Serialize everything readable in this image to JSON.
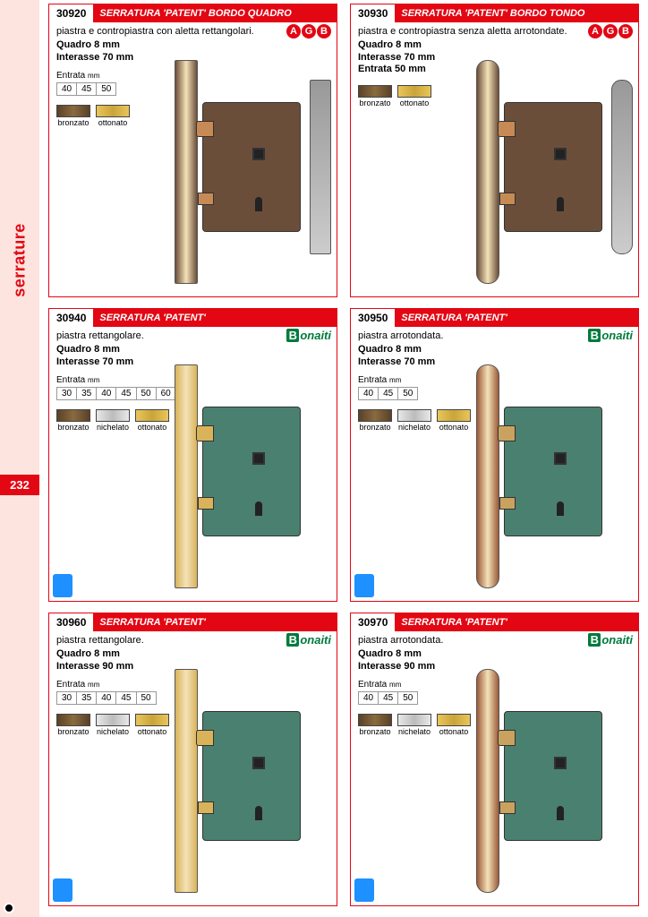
{
  "sidebar": {
    "label": "serrature",
    "bg": "#fde4de",
    "color": "#e30613"
  },
  "pageNumber": "232",
  "accent": "#e30613",
  "finishes": {
    "bronzato": {
      "label": "bronzato",
      "color1": "#5a4128",
      "color2": "#8a6a3f"
    },
    "ottonato": {
      "label": "ottonato",
      "color1": "#e9c65a",
      "color2": "#c9a43a"
    },
    "nichelato": {
      "label": "nichelato",
      "color1": "#e8e8e8",
      "color2": "#bcbcbc"
    }
  },
  "entrataLabel": "Entrata",
  "entrataUnit": "mm",
  "brands": {
    "agb": [
      "A",
      "G",
      "B"
    ],
    "bonaiti": "onaiti"
  },
  "lockStyles": {
    "agb": {
      "plate": "#6b4e3a",
      "body": "#6b4e3a",
      "latch": "#c88a55"
    },
    "brass": {
      "plate": "#d9b35a",
      "body": "#4a8070",
      "latch": "#d9b35a"
    },
    "copper": {
      "plate": "#9c5a3a",
      "body": "#4a8070",
      "latch": "#caa260"
    }
  },
  "cells": [
    {
      "code": "30920",
      "title": "SERRATURA 'PATENT' BORDO QUADRO",
      "desc": "piastra e contropiastra con aletta rettangolari.",
      "specs": [
        "Quadro 8 mm",
        "Interasse 70 mm"
      ],
      "entrata": [
        "40",
        "45",
        "50"
      ],
      "finishKeys": [
        "bronzato",
        "ottonato"
      ],
      "brand": "agb",
      "lockStyle": "agb",
      "rounded": false,
      "strike": true,
      "badge": false
    },
    {
      "code": "30930",
      "title": "SERRATURA 'PATENT' BORDO TONDO",
      "desc": "piastra e contropiastra senza aletta arrotondate.",
      "specs": [
        "Quadro 8 mm",
        "Interasse 70 mm",
        "Entrata 50 mm"
      ],
      "entrata": null,
      "finishKeys": [
        "bronzato",
        "ottonato"
      ],
      "brand": "agb",
      "lockStyle": "agb",
      "rounded": true,
      "strike": true,
      "badge": false
    },
    {
      "code": "30940",
      "title": "SERRATURA 'PATENT'",
      "desc": "piastra rettangolare.",
      "specs": [
        "Quadro 8 mm",
        "Interasse 70 mm"
      ],
      "entrata": [
        "30",
        "35",
        "40",
        "45",
        "50",
        "60"
      ],
      "finishKeys": [
        "bronzato",
        "nichelato",
        "ottonato"
      ],
      "brand": "bonaiti",
      "lockStyle": "brass",
      "rounded": false,
      "strike": false,
      "badge": true
    },
    {
      "code": "30950",
      "title": "SERRATURA 'PATENT'",
      "desc": "piastra arrotondata.",
      "specs": [
        "Quadro 8 mm",
        "Interasse 70 mm"
      ],
      "entrata": [
        "40",
        "45",
        "50"
      ],
      "finishKeys": [
        "bronzato",
        "nichelato",
        "ottonato"
      ],
      "brand": "bonaiti",
      "lockStyle": "copper",
      "rounded": true,
      "strike": false,
      "badge": true
    },
    {
      "code": "30960",
      "title": "SERRATURA 'PATENT'",
      "desc": "piastra rettangolare.",
      "specs": [
        "Quadro 8 mm",
        "Interasse 90 mm"
      ],
      "entrata": [
        "30",
        "35",
        "40",
        "45",
        "50"
      ],
      "finishKeys": [
        "bronzato",
        "nichelato",
        "ottonato"
      ],
      "brand": "bonaiti",
      "lockStyle": "brass",
      "rounded": false,
      "strike": false,
      "badge": true
    },
    {
      "code": "30970",
      "title": "SERRATURA 'PATENT'",
      "desc": "piastra arrotondata.",
      "specs": [
        "Quadro 8 mm",
        "Interasse 90 mm"
      ],
      "entrata": [
        "40",
        "45",
        "50"
      ],
      "finishKeys": [
        "bronzato",
        "nichelato",
        "ottonato"
      ],
      "brand": "bonaiti",
      "lockStyle": "copper",
      "rounded": true,
      "strike": false,
      "badge": true
    }
  ]
}
